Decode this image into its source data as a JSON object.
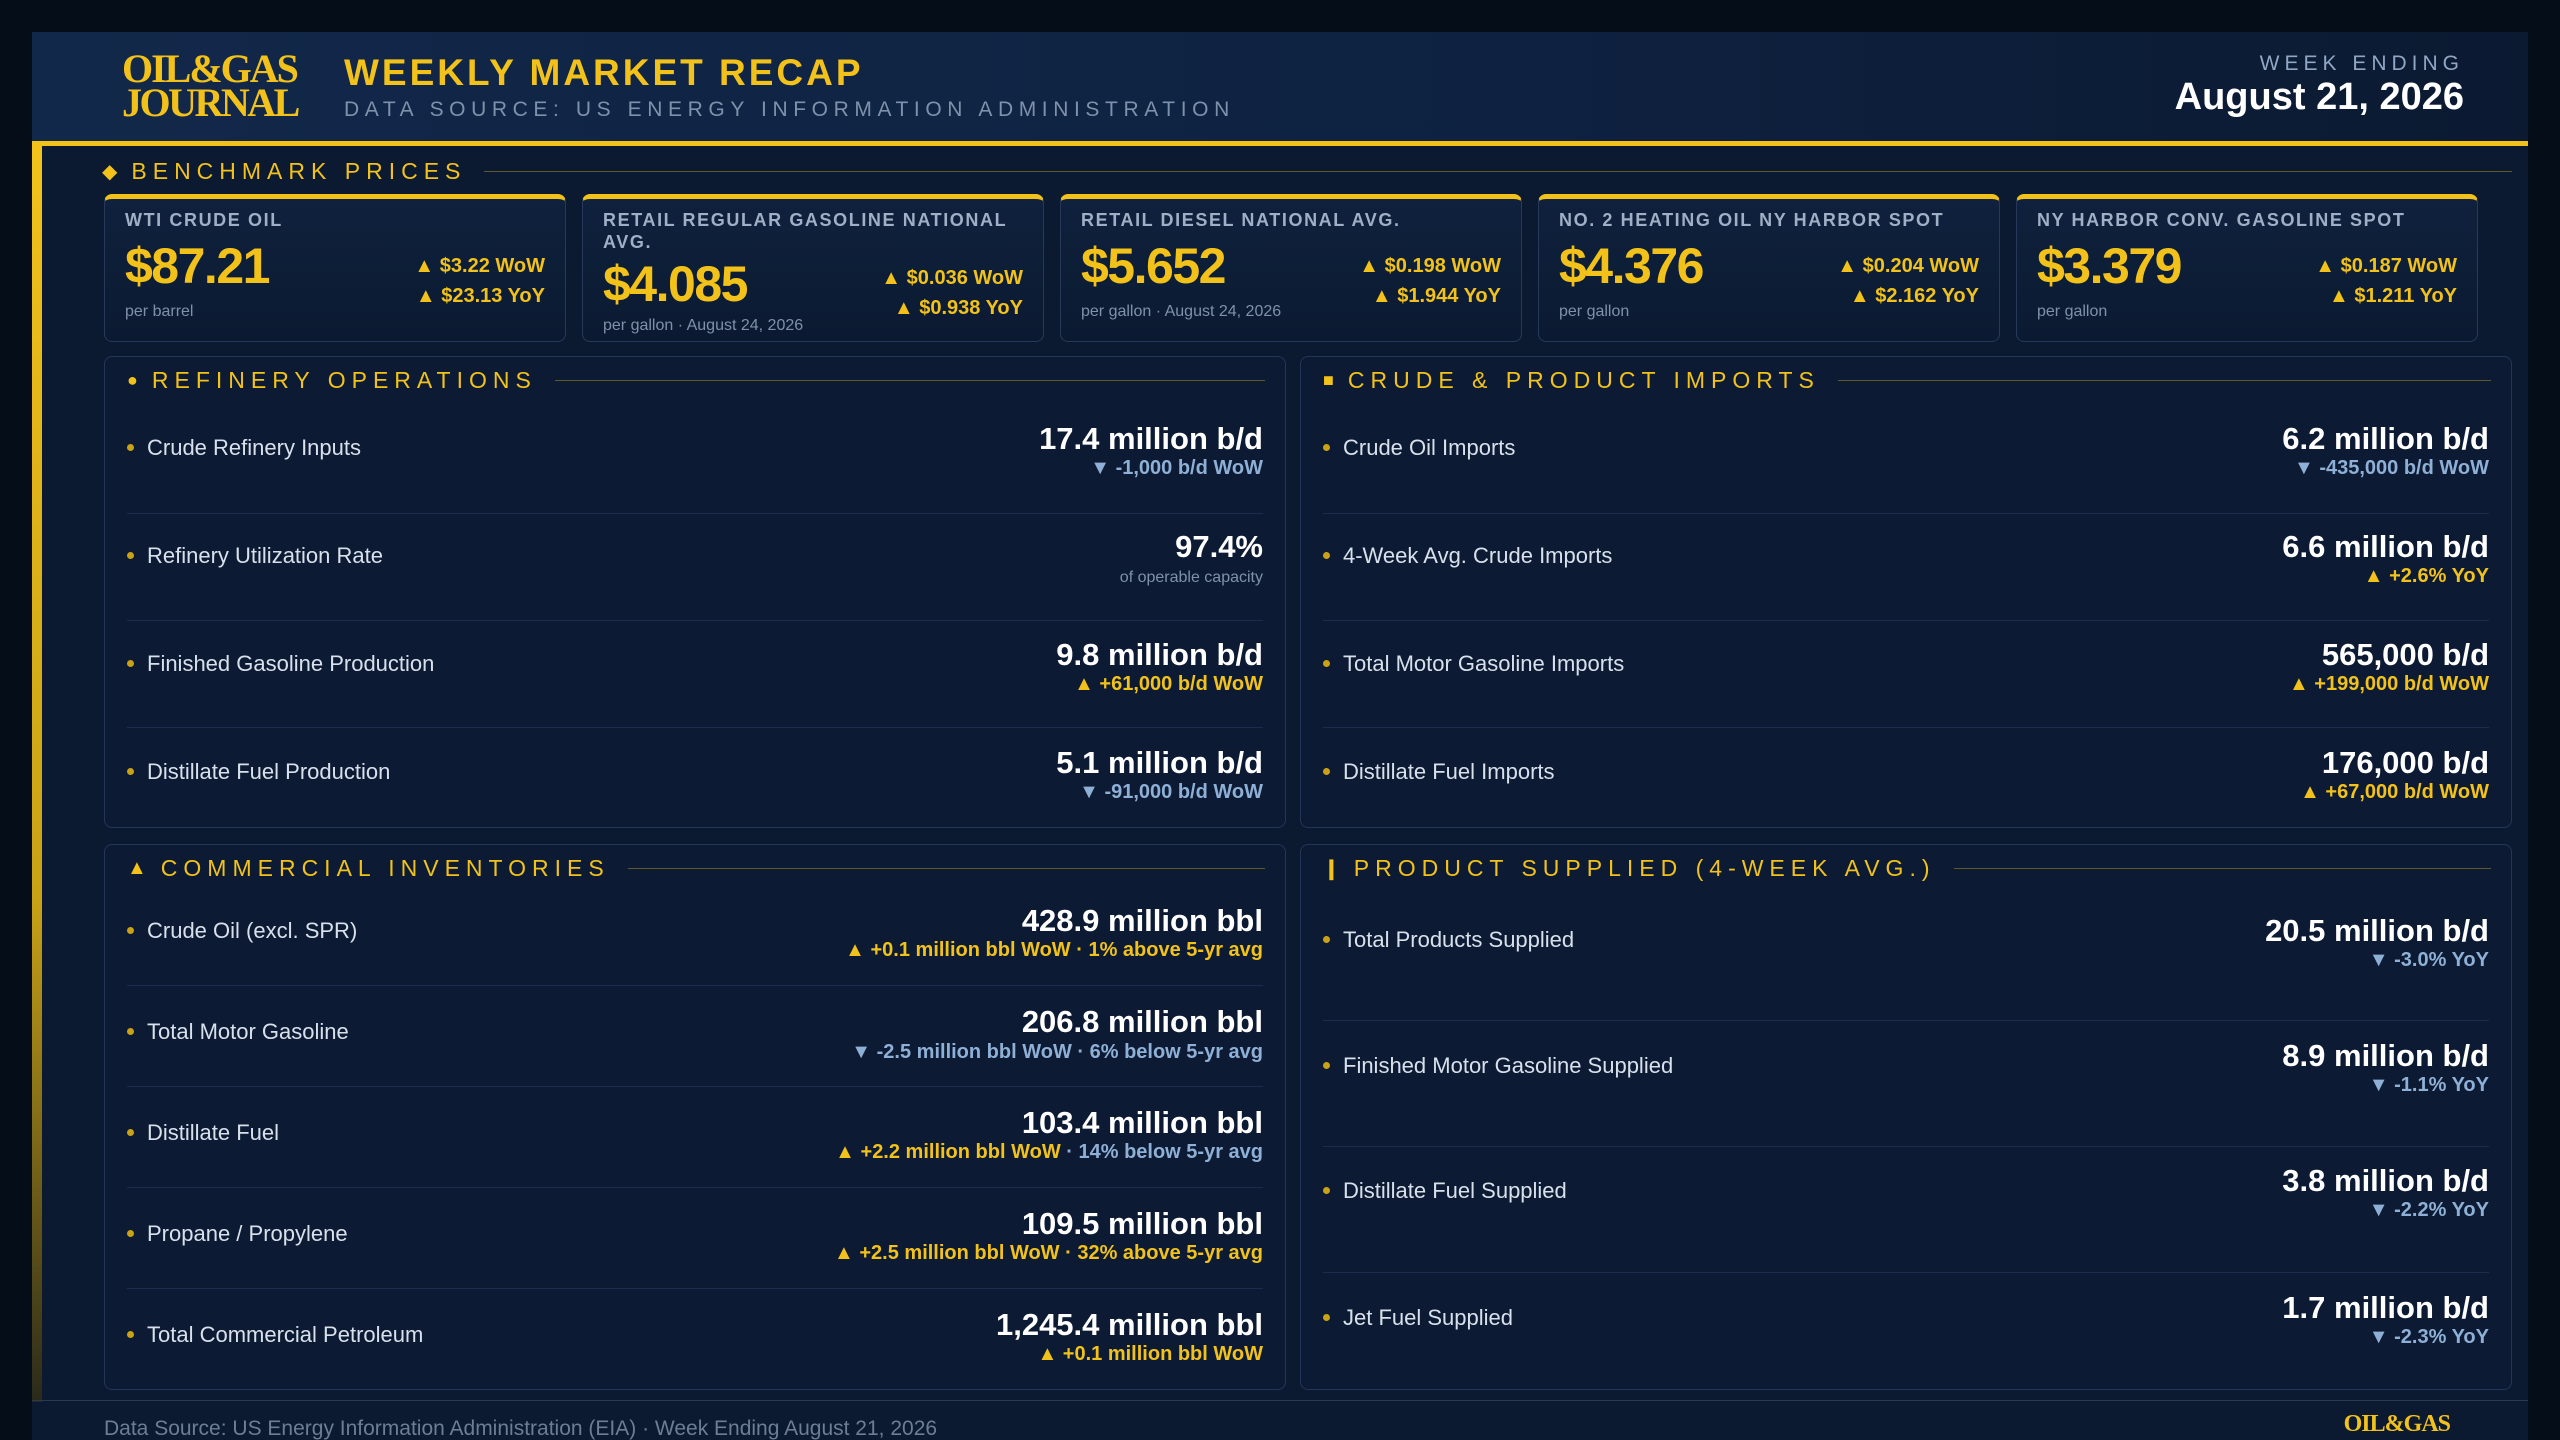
{
  "header": {
    "logo_line1": "OIL&GAS",
    "logo_line2": "JOURNAL",
    "title": "WEEKLY MARKET RECAP",
    "subtitle": "DATA SOURCE: US ENERGY INFORMATION ADMINISTRATION",
    "week_label": "WEEK ENDING",
    "week_date": "August 21, 2026"
  },
  "colors": {
    "accent": "#f2c21b",
    "background": "#0b1a31",
    "down": "#8fb0d6"
  },
  "benchmark": {
    "title": "BENCHMARK PRICES",
    "icon": "diamond-icon",
    "cards": [
      {
        "title": "WTI CRUDE OIL",
        "price": "$87.21",
        "unit": "per barrel",
        "wow": "▲ $3.22 WoW",
        "yoy": "▲ $23.13 YoY"
      },
      {
        "title": "RETAIL REGULAR GASOLINE NATIONAL AVG.",
        "price": "$4.085",
        "unit": "per gallon · August 24, 2026",
        "wow": "▲ $0.036 WoW",
        "yoy": "▲ $0.938 YoY"
      },
      {
        "title": "RETAIL DIESEL NATIONAL AVG.",
        "price": "$5.652",
        "unit": "per gallon · August 24, 2026",
        "wow": "▲ $0.198 WoW",
        "yoy": "▲ $1.944 YoY"
      },
      {
        "title": "NO. 2 HEATING OIL NY HARBOR SPOT",
        "price": "$4.376",
        "unit": "per gallon",
        "wow": "▲ $0.204 WoW",
        "yoy": "▲ $2.162 YoY"
      },
      {
        "title": "NY HARBOR CONV. GASOLINE SPOT",
        "price": "$3.379",
        "unit": "per gallon",
        "wow": "▲ $0.187 WoW",
        "yoy": "▲ $1.211 YoY"
      }
    ]
  },
  "refinery": {
    "title": "REFINERY OPERATIONS",
    "icon": "circle-icon",
    "rows": [
      {
        "label": "Crude Refinery Inputs",
        "value": "17.4 million b/d",
        "sub": "▼ -1,000 b/d WoW"
      },
      {
        "label": "Refinery Utilization Rate",
        "value": "97.4%",
        "sub": "of operable capacity"
      },
      {
        "label": "Finished Gasoline Production",
        "value": "9.8 million b/d",
        "sub": "▲ +61,000 b/d WoW"
      },
      {
        "label": "Distillate Fuel Production",
        "value": "5.1 million b/d",
        "sub": "▼ -91,000 b/d WoW"
      }
    ]
  },
  "imports": {
    "title": "CRUDE & PRODUCT IMPORTS",
    "icon": "square-icon",
    "rows": [
      {
        "label": "Crude Oil Imports",
        "value": "6.2 million b/d",
        "sub": "▼ -435,000 b/d WoW"
      },
      {
        "label": "4-Week Avg. Crude Imports",
        "value": "6.6 million b/d",
        "sub": "▲ +2.6% YoY"
      },
      {
        "label": "Total Motor Gasoline Imports",
        "value": "565,000 b/d",
        "sub": "▲ +199,000 b/d WoW"
      },
      {
        "label": "Distillate Fuel Imports",
        "value": "176,000 b/d",
        "sub": "▲ +67,000 b/d WoW"
      }
    ]
  },
  "inventories": {
    "title": "COMMERCIAL INVENTORIES",
    "icon": "triangle-icon",
    "rows": [
      {
        "label": "Crude Oil (excl. SPR)",
        "value": "428.9 million bbl",
        "sub_a": "▲ +0.1 million bbl WoW",
        "sub_b": " · 1% above 5-yr avg"
      },
      {
        "label": "Total Motor Gasoline",
        "value": "206.8 million bbl",
        "sub_a": "▼ -2.5 million bbl WoW",
        "sub_b": " · 6% below 5-yr avg"
      },
      {
        "label": "Distillate Fuel",
        "value": "103.4 million bbl",
        "sub_a": "▲ +2.2 million bbl WoW",
        "sub_b": " · 14% below 5-yr avg"
      },
      {
        "label": "Propane / Propylene",
        "value": "109.5 million bbl",
        "sub_a": "▲ +2.5 million bbl WoW",
        "sub_b": " · 32% above 5-yr avg"
      },
      {
        "label": "Total Commercial Petroleum",
        "value": "1,245.4 million bbl",
        "sub_a": "▲ +0.1 million bbl WoW",
        "sub_b": ""
      }
    ]
  },
  "supplied": {
    "title": "PRODUCT SUPPLIED (4-WEEK AVG.)",
    "icon": "bar-icon",
    "rows": [
      {
        "label": "Total Products Supplied",
        "value": "20.5 million b/d",
        "sub": "▼ -3.0% YoY"
      },
      {
        "label": "Finished Motor Gasoline Supplied",
        "value": "8.9 million b/d",
        "sub": "▼ -1.1% YoY"
      },
      {
        "label": "Distillate Fuel Supplied",
        "value": "3.8 million b/d",
        "sub": "▼ -2.2% YoY"
      },
      {
        "label": "Jet Fuel Supplied",
        "value": "1.7 million b/d",
        "sub": "▼ -2.3% YoY"
      }
    ]
  },
  "footer": {
    "text": "Data Source: US Energy Information Administration (EIA)  ·  Week Ending August 21, 2026",
    "logo": "OIL&GAS"
  }
}
